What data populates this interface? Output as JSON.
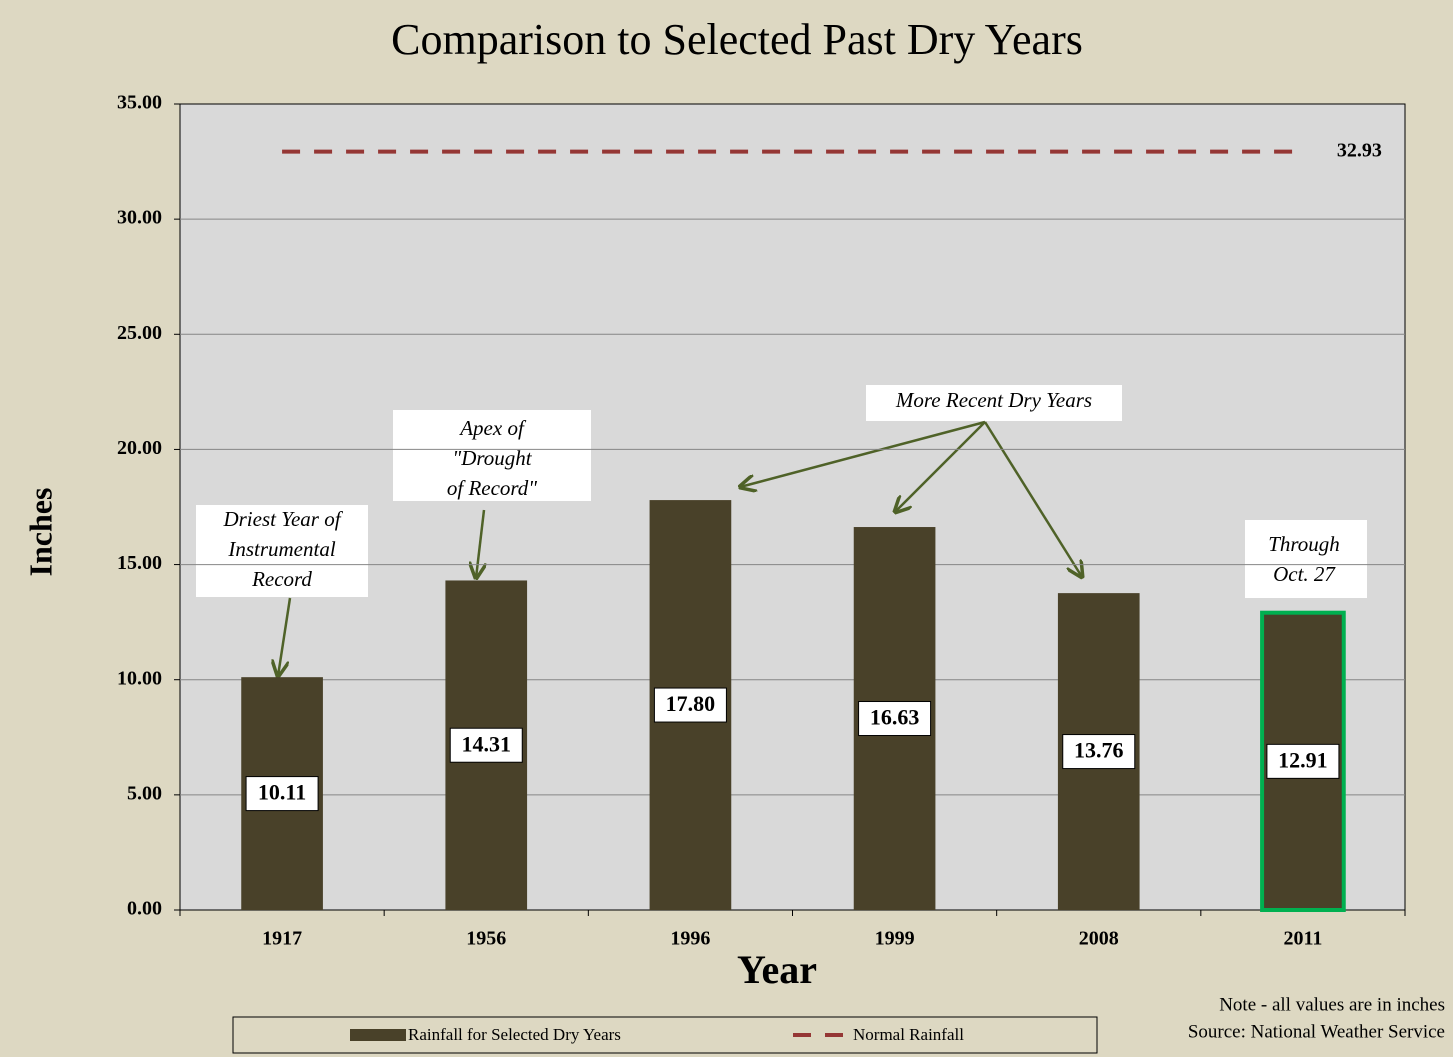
{
  "chart_data": {
    "type": "bar",
    "title": "Comparison to Selected Past Dry Years",
    "xlabel": "Year",
    "ylabel": "Inches",
    "categories": [
      "1917",
      "1956",
      "1996",
      "1999",
      "2008",
      "2011"
    ],
    "series": [
      {
        "name": "Rainfall for Selected Dry Years",
        "type": "bar",
        "color": "#494129",
        "values": [
          10.11,
          14.31,
          17.8,
          16.63,
          13.76,
          12.91
        ],
        "value_labels": [
          "10.11",
          "14.31",
          "17.80",
          "16.63",
          "13.76",
          "12.91"
        ]
      },
      {
        "name": "Normal Rainfall",
        "type": "line",
        "color": "#953735",
        "dashed": true,
        "values": [
          32.93,
          32.93,
          32.93,
          32.93,
          32.93,
          32.93
        ]
      }
    ],
    "highlight": {
      "index": 5,
      "color": "#00b050"
    },
    "ylim": [
      0,
      35
    ],
    "yticks": [
      {
        "value": 0,
        "label": "0.00"
      },
      {
        "value": 5,
        "label": "5.00"
      },
      {
        "value": 10,
        "label": "10.00"
      },
      {
        "value": 15,
        "label": "15.00"
      },
      {
        "value": 20,
        "label": "20.00"
      },
      {
        "value": 25,
        "label": "25.00"
      },
      {
        "value": 30,
        "label": "30.00"
      },
      {
        "value": 35,
        "label": "35.00"
      }
    ],
    "grid": true,
    "legend": "bottom",
    "annotations": [
      {
        "lines": [
          "Driest Year of",
          "Instrumental",
          "Record"
        ]
      },
      {
        "lines": [
          "Apex of",
          "\"Drought",
          "of Record\""
        ]
      },
      {
        "lines": [
          "More Recent Dry Years"
        ]
      },
      {
        "lines": [
          "Through",
          "Oct. 27"
        ]
      }
    ],
    "notes": [
      "Note - all values are in inches",
      "Source:  National Weather Service"
    ]
  }
}
